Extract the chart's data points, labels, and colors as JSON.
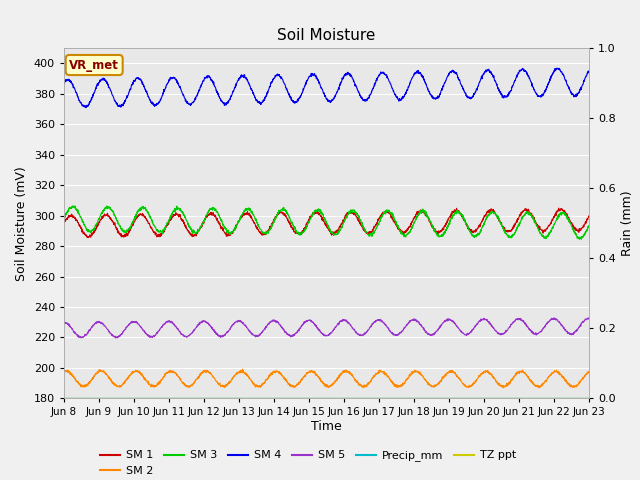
{
  "title": "Soil Moisture",
  "xlabel": "Time",
  "ylabel_left": "Soil Moisture (mV)",
  "ylabel_right": "Rain (mm)",
  "ylim_left": [
    180,
    410
  ],
  "ylim_right": [
    0.0,
    1.0
  ],
  "fig_bg_color": "#f0f0f0",
  "plot_bg_color": "#e8e8e8",
  "grid_color": "#ffffff",
  "series": {
    "SM1": {
      "color": "#cc0000"
    },
    "SM2": {
      "color": "#ff8800"
    },
    "SM3": {
      "color": "#00cc00"
    },
    "SM4": {
      "color": "#0000ee"
    },
    "SM5": {
      "color": "#9933cc"
    },
    "Precip_mm": {
      "color": "#00bbcc"
    },
    "TZ_ppt": {
      "color": "#cccc00"
    }
  },
  "x_ticks_labels": [
    "Jun 8",
    "Jun 9",
    "Jun 10",
    "Jun 11",
    "Jun 12",
    "Jun 13",
    "Jun 14",
    "Jun 15",
    "Jun 16",
    "Jun 17",
    "Jun 18",
    "Jun 19",
    "Jun 20",
    "Jun 21",
    "Jun 22",
    "Jun 23"
  ],
  "legend_items": [
    {
      "label": "SM 1",
      "color": "#cc0000"
    },
    {
      "label": "SM 2",
      "color": "#ff8800"
    },
    {
      "label": "SM 3",
      "color": "#00cc00"
    },
    {
      "label": "SM 4",
      "color": "#0000ee"
    },
    {
      "label": "SM 5",
      "color": "#9933cc"
    },
    {
      "label": "Precip_mm",
      "color": "#00bbcc"
    },
    {
      "label": "TZ ppt",
      "color": "#cccc00"
    }
  ],
  "annotation_text": "VR_met",
  "annotation_bg": "#ffffcc",
  "annotation_border": "#cc8800"
}
